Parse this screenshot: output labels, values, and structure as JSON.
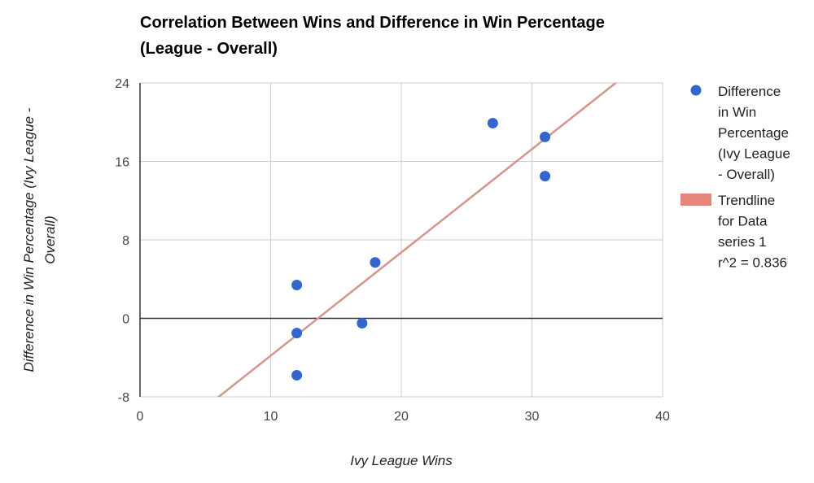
{
  "chart_data": {
    "type": "scatter",
    "title": "Correlation Between Wins and Difference in Win Percentage (League - Overall)",
    "xlabel": "Ivy League Wins",
    "ylabel": "Difference in Win Percentage (Ivy League - Overall)",
    "xlim": [
      0,
      40
    ],
    "ylim": [
      -8,
      24
    ],
    "xticks": [
      "0",
      "10",
      "20",
      "30",
      "40"
    ],
    "yticks": [
      "-8",
      "0",
      "8",
      "16",
      "24"
    ],
    "grid": true,
    "legend_position": "right",
    "series": [
      {
        "name": "Difference in Win Percentage (Ivy League - Overall)",
        "color": "#3366cc",
        "points": [
          [
            12,
            3.4
          ],
          [
            12,
            -1.5
          ],
          [
            12,
            -5.8
          ],
          [
            17,
            -0.5
          ],
          [
            18,
            5.7
          ],
          [
            27,
            19.9
          ],
          [
            31,
            18.5
          ],
          [
            31,
            14.5
          ]
        ]
      }
    ],
    "trendline": {
      "name": "Trendline for Data series 1",
      "r2_label": "r^2 = 0.836",
      "color": "#e8857a",
      "slope": 1.053,
      "intercept": -14.34
    },
    "legend_lines": {
      "series": [
        "Difference",
        "in Win",
        "Percentage",
        "(Ivy League",
        "- Overall)"
      ],
      "trend": [
        "Trendline",
        "for Data",
        "series 1",
        "r^2 = 0.836"
      ]
    }
  }
}
